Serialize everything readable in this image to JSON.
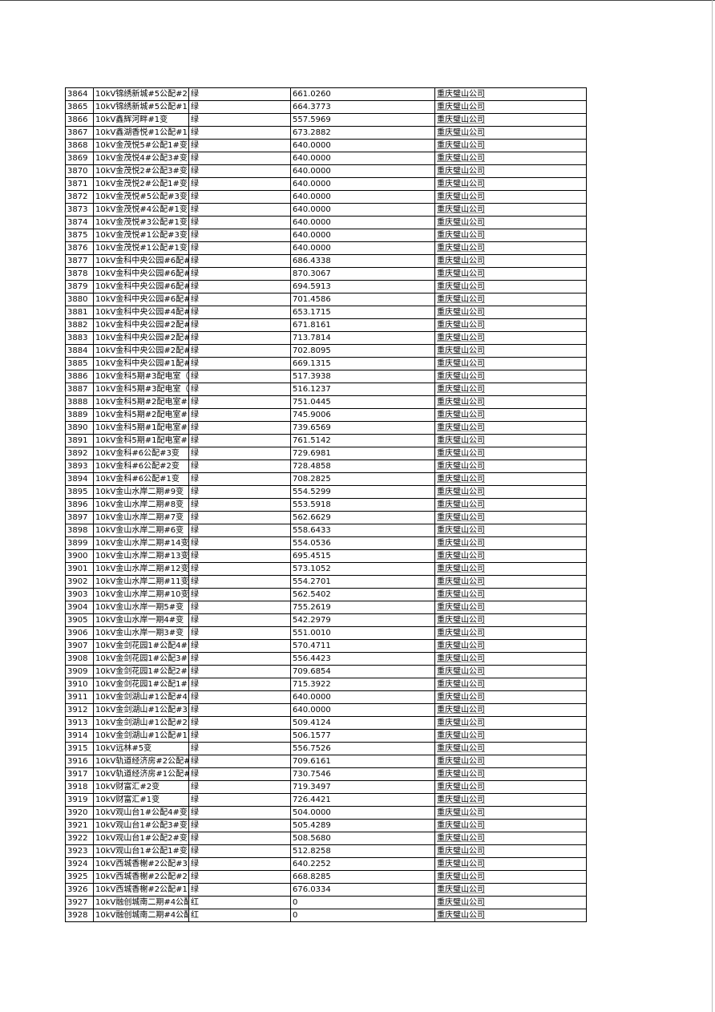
{
  "rows": [
    {
      "id": "3864",
      "name": "10kV锦绣新城#5公配#2变",
      "status": "绿",
      "value": "661.0260",
      "company": "重庆璧山公司"
    },
    {
      "id": "3865",
      "name": "10kV锦绣新城#5公配#1变",
      "status": "绿",
      "value": "664.3773",
      "company": "重庆璧山公司"
    },
    {
      "id": "3866",
      "name": "10kV鑫辉河畔#1变",
      "status": "绿",
      "value": "557.5969",
      "company": "重庆璧山公司"
    },
    {
      "id": "3867",
      "name": "10kV鑫湖香悦#1公配#1变",
      "status": "绿",
      "value": "673.2882",
      "company": "重庆璧山公司"
    },
    {
      "id": "3868",
      "name": "10kV金茂悦5#公配1#变",
      "status": "绿",
      "value": "640.0000",
      "company": "重庆璧山公司"
    },
    {
      "id": "3869",
      "name": "10kV金茂悦4#公配3#变",
      "status": "绿",
      "value": "640.0000",
      "company": "重庆璧山公司"
    },
    {
      "id": "3870",
      "name": "10kV金茂悦2#公配3#变",
      "status": "绿",
      "value": "640.0000",
      "company": "重庆璧山公司"
    },
    {
      "id": "3871",
      "name": "10kV金茂悦2#公配1#变",
      "status": "绿",
      "value": "640.0000",
      "company": "重庆璧山公司"
    },
    {
      "id": "3872",
      "name": "10kV金茂悦#5公配#3变",
      "status": "绿",
      "value": "640.0000",
      "company": "重庆璧山公司"
    },
    {
      "id": "3873",
      "name": "10kV金茂悦#4公配#1变",
      "status": "绿",
      "value": "640.0000",
      "company": "重庆璧山公司"
    },
    {
      "id": "3874",
      "name": "10kV金茂悦#3公配#1变",
      "status": "绿",
      "value": "640.0000",
      "company": "重庆璧山公司"
    },
    {
      "id": "3875",
      "name": "10kV金茂悦#1公配#3变",
      "status": "绿",
      "value": "640.0000",
      "company": "重庆璧山公司"
    },
    {
      "id": "3876",
      "name": "10kV金茂悦#1公配#1变",
      "status": "绿",
      "value": "640.0000",
      "company": "重庆璧山公司"
    },
    {
      "id": "3877",
      "name": "10kV金科中央公园#6配#",
      "status": "绿",
      "value": "686.4338",
      "company": "重庆璧山公司"
    },
    {
      "id": "3878",
      "name": "10kV金科中央公园#6配#",
      "status": "绿",
      "value": "870.3067",
      "company": "重庆璧山公司"
    },
    {
      "id": "3879",
      "name": "10kV金科中央公园#6配#",
      "status": "绿",
      "value": "694.5913",
      "company": "重庆璧山公司"
    },
    {
      "id": "3880",
      "name": "10kV金科中央公园#6配#",
      "status": "绿",
      "value": "701.4586",
      "company": "重庆璧山公司"
    },
    {
      "id": "3881",
      "name": "10kV金科中央公园#4配#",
      "status": "绿",
      "value": "653.1715",
      "company": "重庆璧山公司"
    },
    {
      "id": "3882",
      "name": "10kV金科中央公园#2配#",
      "status": "绿",
      "value": "671.8161",
      "company": "重庆璧山公司"
    },
    {
      "id": "3883",
      "name": "10kV金科中央公园#2配#",
      "status": "绿",
      "value": "713.7814",
      "company": "重庆璧山公司"
    },
    {
      "id": "3884",
      "name": "10kV金科中央公园#2配#",
      "status": "绿",
      "value": "702.8095",
      "company": "重庆璧山公司"
    },
    {
      "id": "3885",
      "name": "10kV金科中央公园#1配#",
      "status": "绿",
      "value": "669.1315",
      "company": "重庆璧山公司"
    },
    {
      "id": "3886",
      "name": "10kV金科5期#3配电室（",
      "status": "绿",
      "value": "517.3938",
      "company": "重庆璧山公司"
    },
    {
      "id": "3887",
      "name": "10kV金科5期#3配电室（",
      "status": "绿",
      "value": "516.1237",
      "company": "重庆璧山公司"
    },
    {
      "id": "3888",
      "name": "10kV金科5期#2配电室#2",
      "status": "绿",
      "value": "751.0445",
      "company": "重庆璧山公司"
    },
    {
      "id": "3889",
      "name": "10kV金科5期#2配电室#1",
      "status": "绿",
      "value": "745.9006",
      "company": "重庆璧山公司"
    },
    {
      "id": "3890",
      "name": "10kV金科5期#1配电室#2",
      "status": "绿",
      "value": "739.6569",
      "company": "重庆璧山公司"
    },
    {
      "id": "3891",
      "name": "10kV金科5期#1配电室#1",
      "status": "绿",
      "value": "761.5142",
      "company": "重庆璧山公司"
    },
    {
      "id": "3892",
      "name": "10kV金科#6公配#3变",
      "status": "绿",
      "value": "729.6981",
      "company": "重庆璧山公司"
    },
    {
      "id": "3893",
      "name": "10kV金科#6公配#2变",
      "status": "绿",
      "value": "728.4858",
      "company": "重庆璧山公司"
    },
    {
      "id": "3894",
      "name": "10kV金科#6公配#1变",
      "status": "绿",
      "value": "708.2825",
      "company": "重庆璧山公司"
    },
    {
      "id": "3895",
      "name": "10kV金山水岸二期#9变",
      "status": "绿",
      "value": "554.5299",
      "company": "重庆璧山公司"
    },
    {
      "id": "3896",
      "name": "10kV金山水岸二期#8变",
      "status": "绿",
      "value": "553.5918",
      "company": "重庆璧山公司"
    },
    {
      "id": "3897",
      "name": "10kV金山水岸二期#7变",
      "status": "绿",
      "value": "562.6629",
      "company": "重庆璧山公司"
    },
    {
      "id": "3898",
      "name": "10kV金山水岸二期#6变",
      "status": "绿",
      "value": "558.6433",
      "company": "重庆璧山公司"
    },
    {
      "id": "3899",
      "name": "10kV金山水岸二期#14变",
      "status": "绿",
      "value": "554.0536",
      "company": "重庆璧山公司"
    },
    {
      "id": "3900",
      "name": "10kV金山水岸二期#13变",
      "status": "绿",
      "value": "695.4515",
      "company": "重庆璧山公司"
    },
    {
      "id": "3901",
      "name": "10kV金山水岸二期#12变",
      "status": "绿",
      "value": "573.1052",
      "company": "重庆璧山公司"
    },
    {
      "id": "3902",
      "name": "10kV金山水岸二期#11变",
      "status": "绿",
      "value": "554.2701",
      "company": "重庆璧山公司"
    },
    {
      "id": "3903",
      "name": "10kV金山水岸二期#10变",
      "status": "绿",
      "value": "562.5402",
      "company": "重庆璧山公司"
    },
    {
      "id": "3904",
      "name": "10kV金山水岸一期5#变",
      "status": "绿",
      "value": "755.2619",
      "company": "重庆璧山公司"
    },
    {
      "id": "3905",
      "name": "10kV金山水岸一期4#变",
      "status": "绿",
      "value": "542.2979",
      "company": "重庆璧山公司"
    },
    {
      "id": "3906",
      "name": "10kV金山水岸一期3#变",
      "status": "绿",
      "value": "551.0010",
      "company": "重庆璧山公司"
    },
    {
      "id": "3907",
      "name": "10kV金剑花园1#公配4#变",
      "status": "绿",
      "value": "570.4711",
      "company": "重庆璧山公司"
    },
    {
      "id": "3908",
      "name": "10kV金剑花园1#公配3#变",
      "status": "绿",
      "value": "556.4423",
      "company": "重庆璧山公司"
    },
    {
      "id": "3909",
      "name": "10kV金剑花园1#公配2#变",
      "status": "绿",
      "value": "709.6854",
      "company": "重庆璧山公司"
    },
    {
      "id": "3910",
      "name": "10kV金剑花园1#公配1#变",
      "status": "绿",
      "value": "715.3922",
      "company": "重庆璧山公司"
    },
    {
      "id": "3911",
      "name": "10kV金剑湖山#1公配#4变",
      "status": "绿",
      "value": "640.0000",
      "company": "重庆璧山公司"
    },
    {
      "id": "3912",
      "name": "10kV金剑湖山#1公配#3变",
      "status": "绿",
      "value": "640.0000",
      "company": "重庆璧山公司"
    },
    {
      "id": "3913",
      "name": "10kV金剑湖山#1公配#2变",
      "status": "绿",
      "value": "509.4124",
      "company": "重庆璧山公司"
    },
    {
      "id": "3914",
      "name": "10kV金剑湖山#1公配#1变",
      "status": "绿",
      "value": "506.1577",
      "company": "重庆璧山公司"
    },
    {
      "id": "3915",
      "name": "10kV远林#5变",
      "status": "绿",
      "value": "556.7526",
      "company": "重庆璧山公司"
    },
    {
      "id": "3916",
      "name": "10kV轨道经济房#2公配#",
      "status": "绿",
      "value": "709.6161",
      "company": "重庆璧山公司"
    },
    {
      "id": "3917",
      "name": "10kV轨道经济房#1公配#",
      "status": "绿",
      "value": "730.7546",
      "company": "重庆璧山公司"
    },
    {
      "id": "3918",
      "name": "10kV财富汇#2变",
      "status": "绿",
      "value": "719.3497",
      "company": "重庆璧山公司"
    },
    {
      "id": "3919",
      "name": "10kV财富汇#1变",
      "status": "绿",
      "value": "726.4421",
      "company": "重庆璧山公司"
    },
    {
      "id": "3920",
      "name": "10kV观山台1#公配4#变",
      "status": "绿",
      "value": "504.0000",
      "company": "重庆璧山公司"
    },
    {
      "id": "3921",
      "name": "10kV观山台1#公配3#变",
      "status": "绿",
      "value": "505.4289",
      "company": "重庆璧山公司"
    },
    {
      "id": "3922",
      "name": "10kV观山台1#公配2#变",
      "status": "绿",
      "value": "508.5680",
      "company": "重庆璧山公司"
    },
    {
      "id": "3923",
      "name": "10kV观山台1#公配1#变",
      "status": "绿",
      "value": "512.8258",
      "company": "重庆璧山公司"
    },
    {
      "id": "3924",
      "name": "10kV西城香榭#2公配#3变",
      "status": "绿",
      "value": "640.2252",
      "company": "重庆璧山公司"
    },
    {
      "id": "3925",
      "name": "10kV西城香榭#2公配#2变",
      "status": "绿",
      "value": "668.8285",
      "company": "重庆璧山公司"
    },
    {
      "id": "3926",
      "name": "10kV西城香榭#2公配#1变",
      "status": "绿",
      "value": "676.0334",
      "company": "重庆璧山公司"
    },
    {
      "id": "3927",
      "name": "10kV融创城南二期#4公配",
      "status": "红",
      "value": "0",
      "company": "重庆璧山公司"
    },
    {
      "id": "3928",
      "name": "10kV融创城南二期#4公配",
      "status": "红",
      "value": "0",
      "company": "重庆璧山公司"
    }
  ]
}
